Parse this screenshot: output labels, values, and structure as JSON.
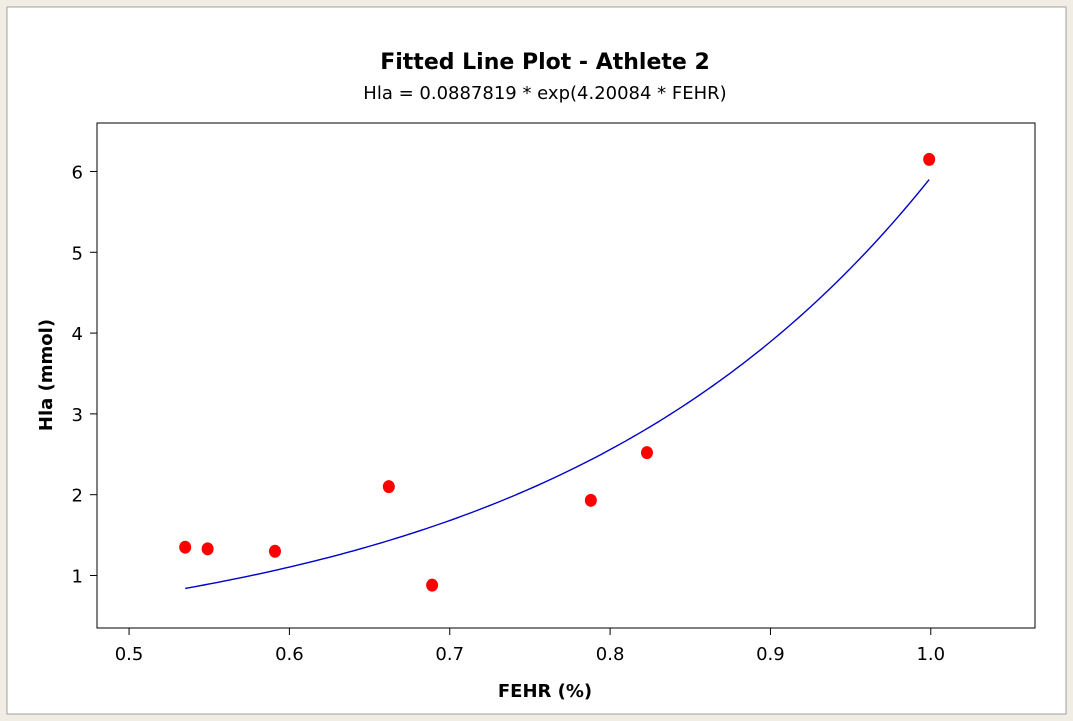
{
  "chart_data": {
    "type": "scatter",
    "title": "Fitted Line Plot - Athlete 2",
    "subtitle": "Hla = 0.0887819 * exp(4.20084 * FEHR)",
    "xlabel": "FEHR (%)",
    "ylabel": "Hla (mmol)",
    "xlim": [
      0.48,
      1.065
    ],
    "ylim": [
      0.35,
      6.6
    ],
    "xticks": [
      0.5,
      0.6,
      0.7,
      0.8,
      0.9,
      1.0
    ],
    "xtick_labels": [
      "0.5",
      "0.6",
      "0.7",
      "0.8",
      "0.9",
      "1.0"
    ],
    "yticks": [
      1,
      2,
      3,
      4,
      5,
      6
    ],
    "ytick_labels": [
      "1",
      "2",
      "3",
      "4",
      "5",
      "6"
    ],
    "grid": false,
    "series": [
      {
        "type": "scatter",
        "color": "#ff0000",
        "points": [
          {
            "x": 0.535,
            "y": 1.35
          },
          {
            "x": 0.549,
            "y": 1.33
          },
          {
            "x": 0.591,
            "y": 1.3
          },
          {
            "x": 0.662,
            "y": 2.1
          },
          {
            "x": 0.689,
            "y": 0.88
          },
          {
            "x": 0.788,
            "y": 1.93
          },
          {
            "x": 0.823,
            "y": 2.52
          },
          {
            "x": 0.999,
            "y": 6.15
          }
        ]
      },
      {
        "type": "fit",
        "color": "#0000cc",
        "model": "exponential",
        "a": 0.0887819,
        "b": 4.20084,
        "x_range": [
          0.535,
          0.999
        ]
      }
    ]
  }
}
